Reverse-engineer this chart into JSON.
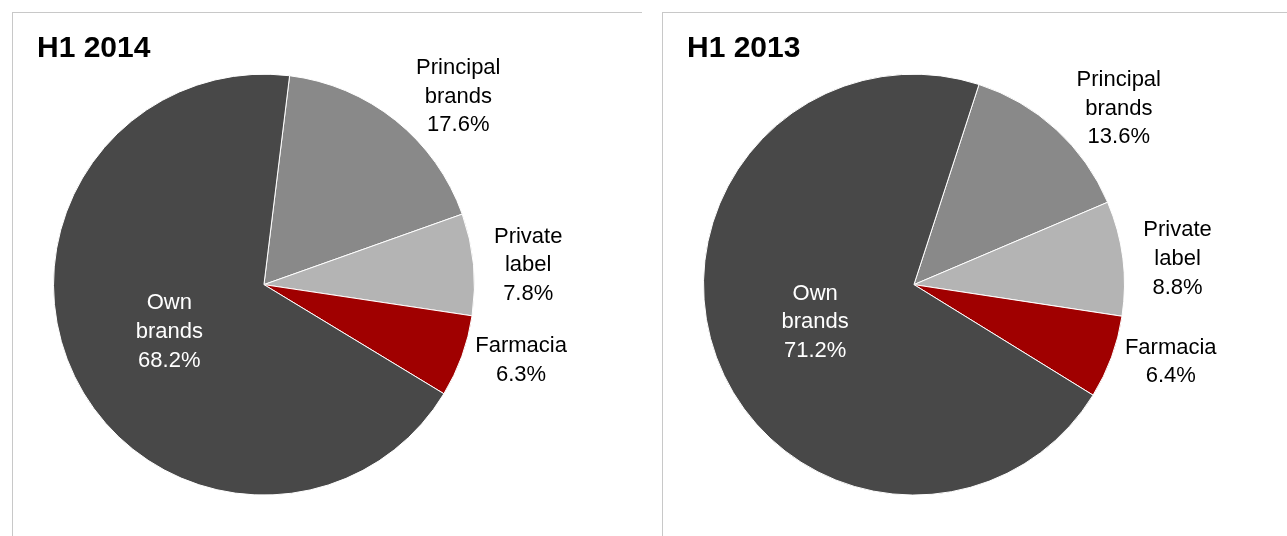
{
  "chart_data": [
    {
      "type": "pie",
      "title": "H1 2014",
      "categories": [
        "Principal brands",
        "Private label",
        "Farmacia",
        "Own brands"
      ],
      "values": [
        17.6,
        7.8,
        6.3,
        68.2
      ],
      "value_labels": [
        "17.6%",
        "7.8%",
        "6.3%",
        "68.2%"
      ],
      "colors": [
        "#898989",
        "#b4b4b4",
        "#a00000",
        "#484848"
      ],
      "legend": false
    },
    {
      "type": "pie",
      "title": "H1 2013",
      "categories": [
        "Principal brands",
        "Private label",
        "Farmacia",
        "Own brands"
      ],
      "values": [
        13.6,
        8.8,
        6.4,
        71.2
      ],
      "value_labels": [
        "13.6%",
        "8.8%",
        "6.4%",
        "71.2%"
      ],
      "colors": [
        "#898989",
        "#b4b4b4",
        "#a00000",
        "#484848"
      ],
      "legend": false
    }
  ]
}
